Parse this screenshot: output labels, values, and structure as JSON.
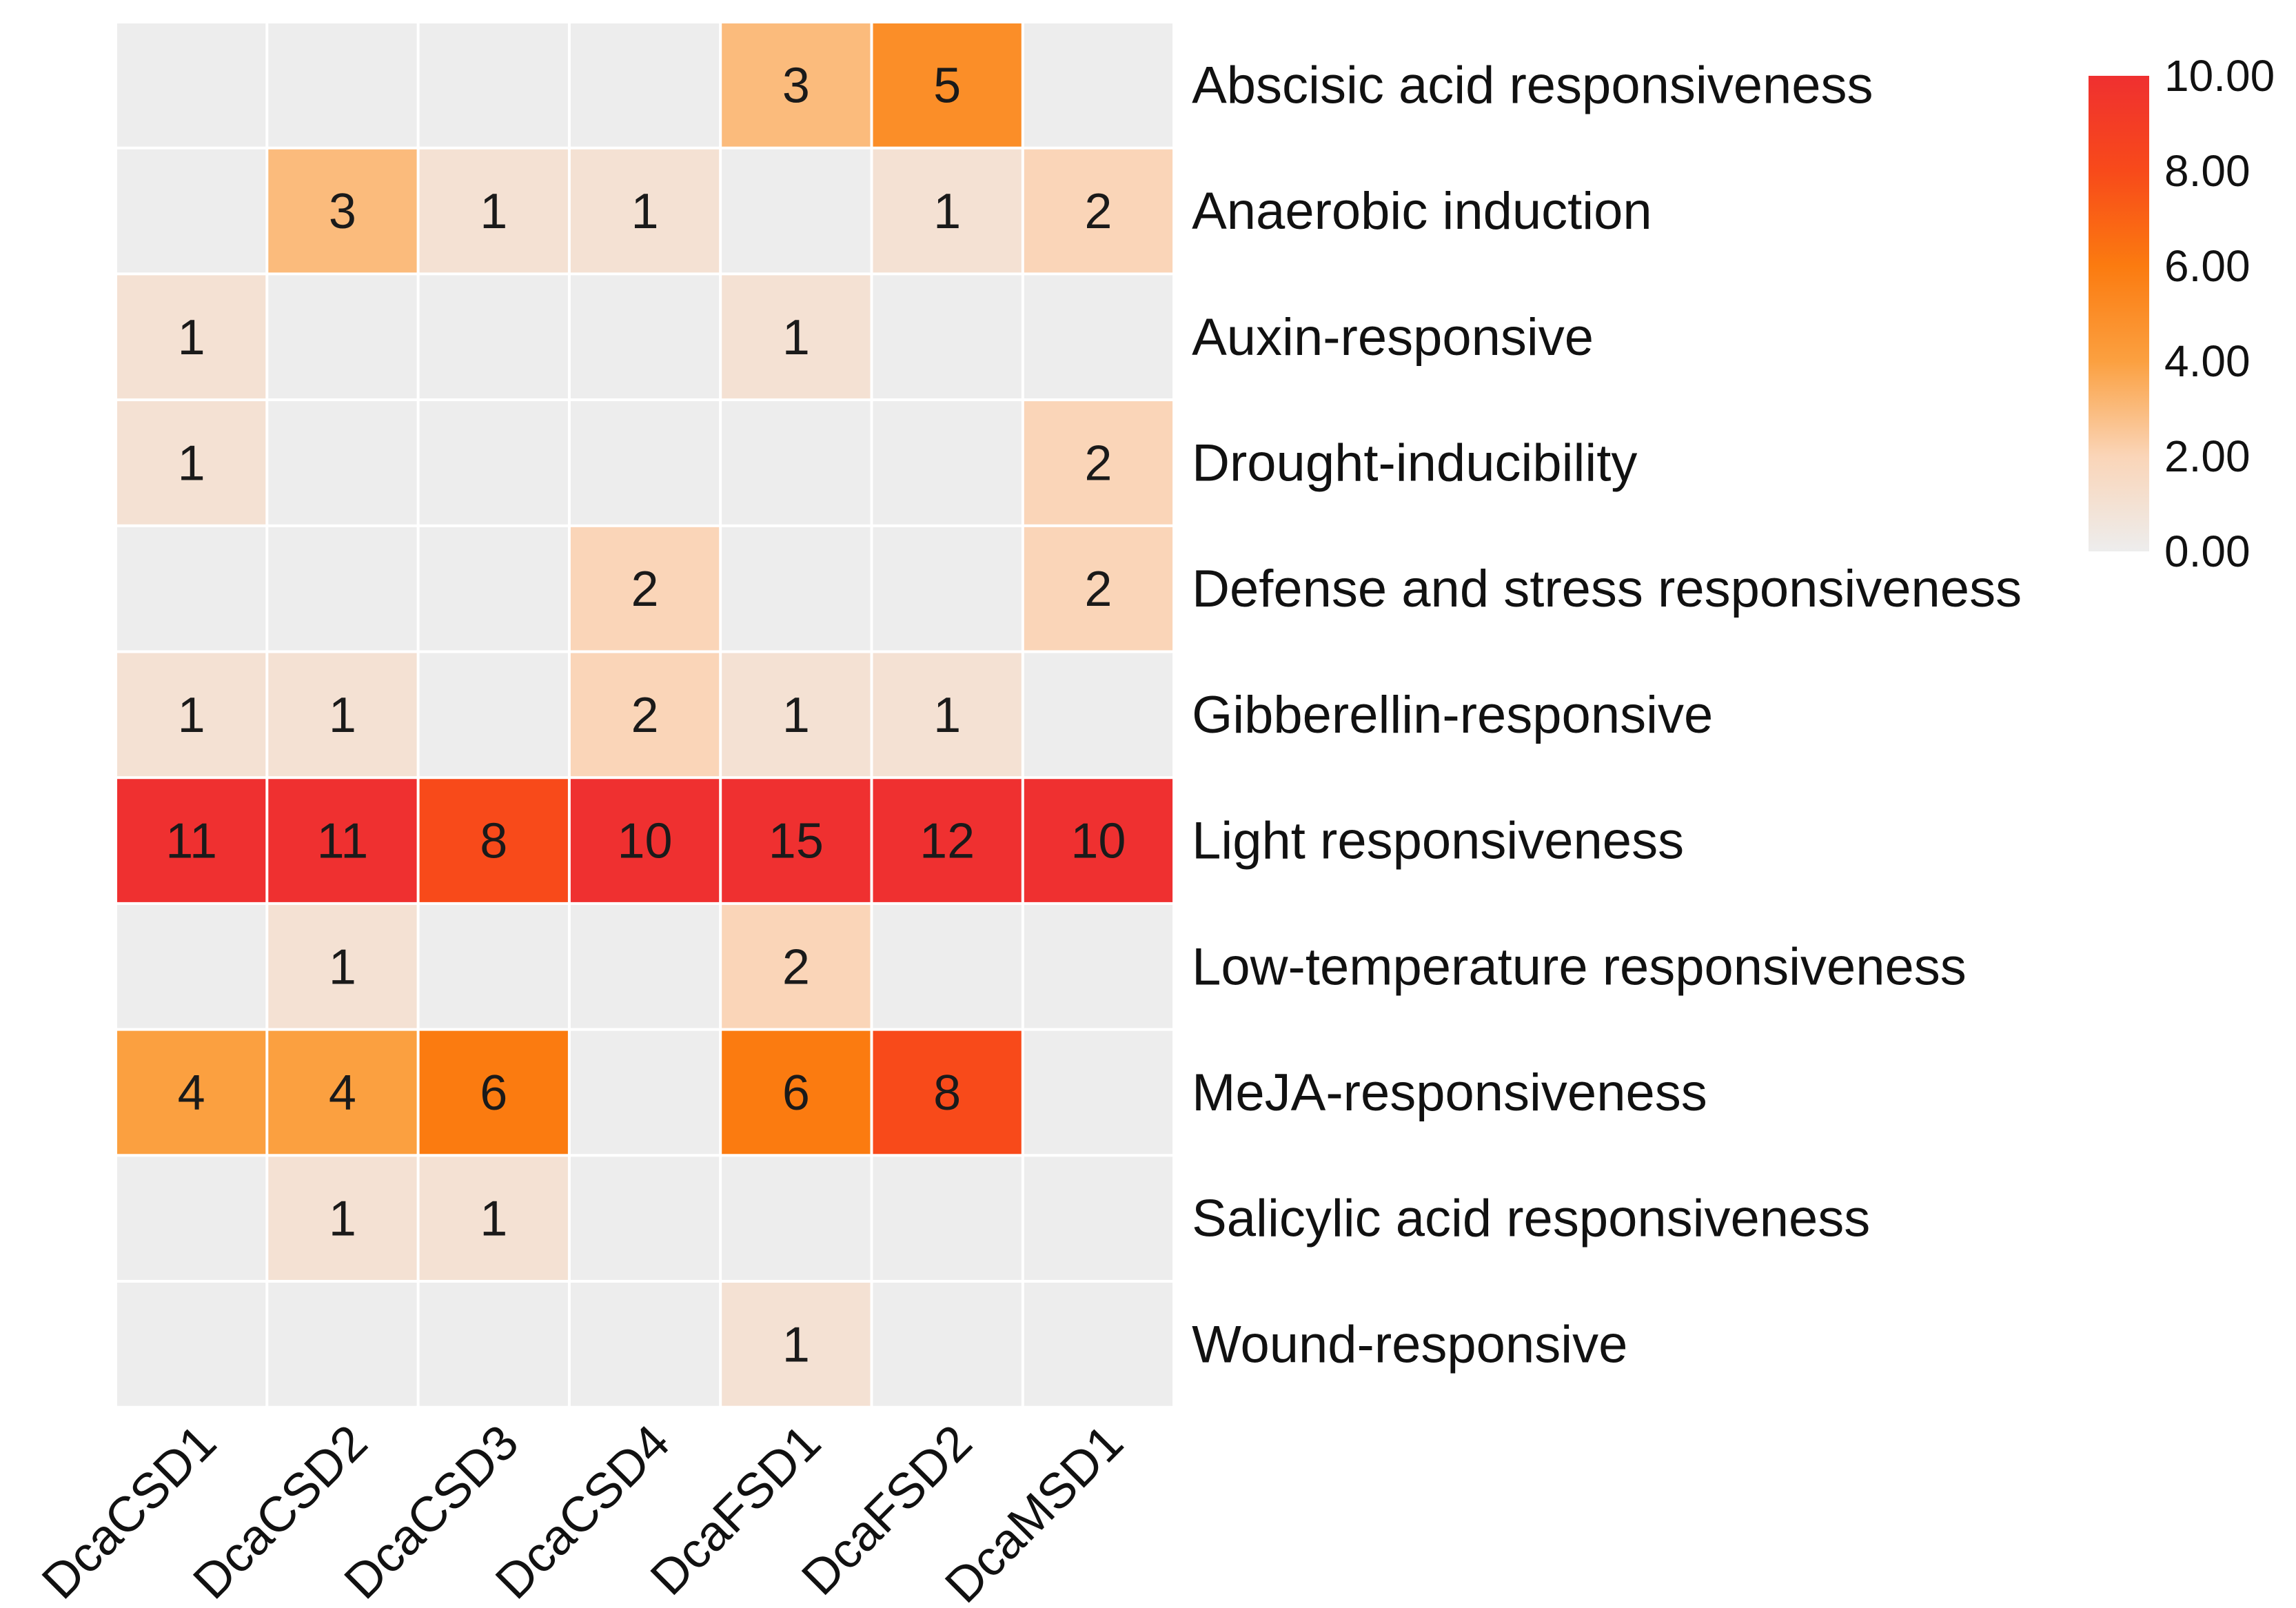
{
  "chart_data": {
    "type": "heatmap",
    "columns": [
      "DcaCSD1",
      "DcaCSD2",
      "DcaCSD3",
      "DcaCSD4",
      "DcaFSD1",
      "DcaFSD2",
      "DcaMSD1"
    ],
    "rows": [
      "Abscisic acid responsiveness",
      "Anaerobic induction",
      "Auxin-responsive",
      "Drought-inducibility",
      "Defense and stress responsiveness",
      "Gibberellin-responsive",
      "Light responsiveness",
      "Low-temperature responsiveness",
      "MeJA-responsiveness",
      "Salicylic acid responsiveness",
      "Wound-responsive"
    ],
    "values": [
      [
        0,
        0,
        0,
        0,
        3,
        5,
        0
      ],
      [
        0,
        3,
        1,
        1,
        0,
        1,
        2
      ],
      [
        1,
        0,
        0,
        0,
        1,
        0,
        0
      ],
      [
        1,
        0,
        0,
        0,
        0,
        0,
        2
      ],
      [
        0,
        0,
        0,
        2,
        0,
        0,
        2
      ],
      [
        1,
        1,
        0,
        2,
        1,
        1,
        0
      ],
      [
        11,
        11,
        8,
        10,
        15,
        12,
        10
      ],
      [
        0,
        1,
        0,
        0,
        2,
        0,
        0
      ],
      [
        4,
        4,
        6,
        0,
        6,
        8,
        0
      ],
      [
        0,
        1,
        1,
        0,
        0,
        0,
        0
      ],
      [
        0,
        0,
        0,
        0,
        1,
        0,
        0
      ]
    ],
    "color_scale": {
      "min": 0,
      "max": 10,
      "stops": [
        {
          "value": 0,
          "color": "#ededed"
        },
        {
          "value": 2,
          "color": "#fad5b8"
        },
        {
          "value": 4,
          "color": "#fba040"
        },
        {
          "value": 6,
          "color": "#fb7b10"
        },
        {
          "value": 8,
          "color": "#f84a1a"
        },
        {
          "value": 10,
          "color": "#ef3030"
        }
      ]
    },
    "legend": {
      "position": "right",
      "ticks": [
        "10.00",
        "8.00",
        "6.00",
        "4.00",
        "2.00",
        "0.00"
      ]
    },
    "zero_label_hidden": true
  }
}
